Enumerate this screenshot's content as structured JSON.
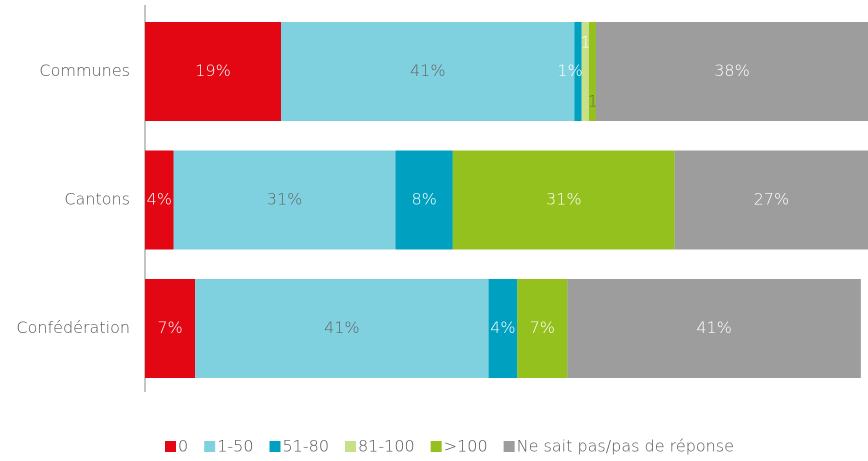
{
  "chart_data": {
    "type": "bar",
    "orientation": "horizontal",
    "stacked": true,
    "categories": [
      "Communes",
      "Cantons",
      "Confédération"
    ],
    "series": [
      {
        "name": "0",
        "color": "#e30613",
        "values": [
          19,
          4,
          7
        ],
        "value_labels": [
          "19%",
          "4%",
          "7%"
        ]
      },
      {
        "name": "1-50",
        "color": "#7fd1e0",
        "values": [
          41,
          31,
          41
        ],
        "value_labels": [
          "41%",
          "31%",
          "41%"
        ]
      },
      {
        "name": "51-80",
        "color": "#00a0c0",
        "values": [
          1,
          8,
          4
        ],
        "value_labels": [
          "1%",
          "8%",
          "4%"
        ]
      },
      {
        "name": "81-100",
        "color": "#c8e08a",
        "values": [
          1,
          0,
          0
        ],
        "value_labels": [
          "1%",
          null,
          null
        ]
      },
      {
        "name": ">100",
        "color": "#95c11f",
        "values": [
          1,
          31,
          7
        ],
        "value_labels": [
          "1%",
          "31%",
          "7%"
        ]
      },
      {
        "name": "Ne sait pas/pas de réponse",
        "color": "#9d9d9d",
        "values": [
          38,
          27,
          41
        ],
        "value_labels": [
          "38%",
          "27%",
          "41%"
        ]
      }
    ],
    "legend": "bottom"
  }
}
